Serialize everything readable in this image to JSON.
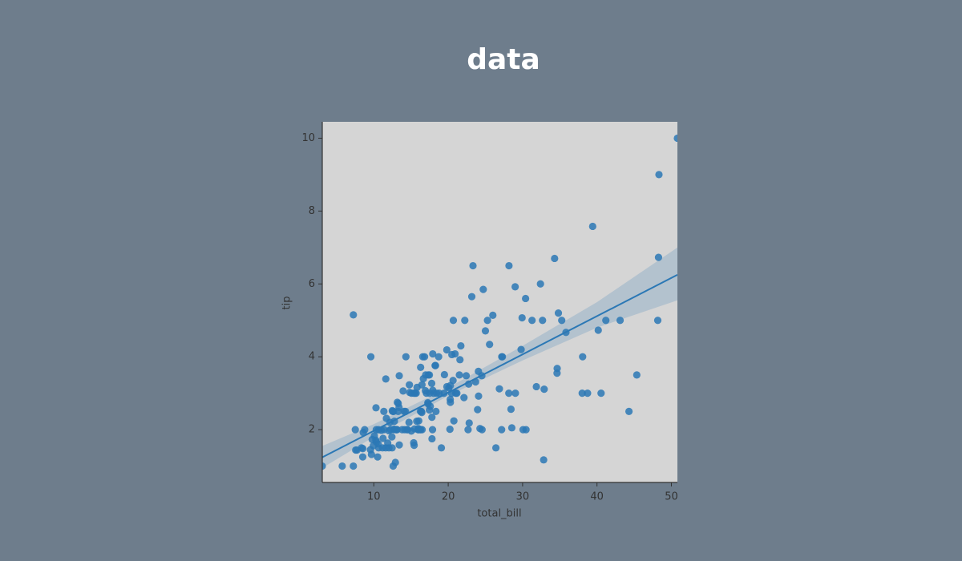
{
  "chart_data": {
    "type": "regplot",
    "title": "data",
    "x_label": "total_bill",
    "y_label": "tip",
    "xlim": [
      3.07,
      50.81
    ],
    "ylim": [
      0.55,
      10.45
    ],
    "xticks": [
      10,
      20,
      30,
      40,
      50
    ],
    "yticks": [
      2,
      4,
      6,
      8,
      10
    ],
    "color": "#2b78b5",
    "points": {
      "x": [
        50.81,
        48.33,
        39.42,
        48.27,
        34.3,
        23.33,
        28.17,
        24.71,
        23.17,
        26.0,
        29.0,
        32.4,
        30.4,
        48.17,
        40.55,
        38.01,
        38.73,
        38.07,
        41.19,
        43.11,
        40.17,
        45.35,
        44.3,
        35.26,
        34.63,
        34.65,
        34.81,
        35.83,
        32.9,
        32.83,
        32.68,
        31.85,
        31.27,
        30.46,
        29.8,
        29.93,
        28.55,
        28.44,
        28.15,
        29.03,
        27.2,
        27.28,
        26.88,
        27.18,
        26.41,
        30.06,
        25.0,
        25.28,
        25.56,
        22.82,
        22.67,
        24.08,
        24.27,
        24.55,
        24.06,
        24.52,
        23.95,
        22.42,
        21.58,
        22.75,
        20.69,
        22.23,
        21.5,
        21.01,
        20.92,
        20.65,
        20.29,
        20.27,
        21.16,
        20.45,
        20.23,
        19.81,
        20.76,
        20.49,
        20.08,
        20.29,
        22.12,
        21.7,
        19.08,
        18.78,
        19.44,
        19.82,
        19.49,
        18.71,
        18.29,
        18.24,
        17.92,
        18.35,
        18.04,
        17.78,
        18.43,
        17.81,
        17.92,
        17.89,
        17.82,
        17.07,
        17.26,
        17.29,
        17.31,
        17.46,
        17.47,
        17.51,
        16.97,
        16.93,
        16.82,
        16.66,
        16.58,
        16.49,
        16.47,
        16.4,
        16.31,
        16.29,
        16.27,
        16.21,
        16.0,
        16.04,
        15.98,
        15.95,
        15.81,
        15.77,
        15.69,
        15.53,
        15.48,
        15.42,
        15.38,
        15.36,
        15.06,
        15.04,
        14.83,
        14.78,
        14.73,
        14.52,
        14.48,
        14.31,
        14.26,
        14.15,
        14.07,
        13.94,
        13.81,
        13.42,
        13.42,
        13.39,
        13.28,
        13.27,
        13.16,
        13.13,
        13.03,
        13.0,
        12.9,
        12.76,
        12.74,
        12.69,
        12.66,
        12.6,
        12.54,
        12.48,
        12.46,
        12.43,
        12.26,
        12.16,
        12.03,
        12.02,
        11.87,
        11.69,
        11.61,
        11.59,
        11.38,
        11.35,
        11.24,
        11.17,
        11.02,
        10.65,
        10.63,
        10.59,
        10.51,
        10.34,
        10.33,
        10.29,
        10.27,
        10.07,
        9.94,
        9.78,
        9.68,
        9.6,
        9.55,
        8.77,
        8.58,
        8.52,
        8.51,
        8.35,
        7.74,
        7.56,
        7.51,
        7.25,
        7.25,
        5.75,
        3.07,
        16.45,
        17.59,
        23.68
      ],
      "y": [
        10,
        9,
        7.58,
        6.73,
        6.7,
        6.5,
        6.5,
        5.85,
        5.65,
        5.14,
        5.92,
        6.0,
        5.6,
        5.0,
        3.0,
        3.0,
        3.0,
        4.0,
        5.0,
        5.0,
        4.73,
        3.5,
        2.5,
        5.0,
        3.55,
        3.68,
        5.2,
        4.67,
        3.11,
        1.17,
        5.0,
        3.18,
        5.0,
        2.0,
        4.2,
        5.07,
        2.05,
        2.56,
        3.0,
        3.0,
        4.0,
        4.0,
        3.12,
        2.0,
        1.5,
        2.0,
        4.71,
        5.0,
        4.34,
        2.18,
        2.0,
        2.92,
        2.03,
        2.0,
        3.6,
        3.48,
        2.55,
        3.48,
        3.92,
        3.25,
        5.0,
        5.0,
        3.5,
        3.0,
        4.08,
        3.35,
        3.21,
        2.83,
        3.0,
        3.0,
        2.01,
        4.19,
        2.24,
        4.06,
        3.15,
        2.75,
        2.88,
        4.3,
        1.5,
        3.0,
        3.0,
        3.18,
        3.51,
        4.0,
        3.76,
        3.76,
        4.08,
        2.5,
        3.0,
        3.27,
        3.0,
        2.34,
        3.08,
        2.0,
        1.75,
        3.0,
        2.74,
        2.71,
        3.5,
        2.54,
        3.5,
        3.0,
        3.5,
        3.07,
        4.0,
        3.4,
        4.0,
        2.0,
        3.23,
        2.5,
        2.0,
        3.71,
        2.5,
        2.0,
        2.0,
        2.24,
        2.03,
        2.0,
        3.16,
        2.23,
        3.0,
        3.0,
        2.02,
        1.57,
        3.0,
        1.64,
        3.0,
        1.96,
        3.02,
        3.23,
        2.2,
        2.0,
        2.0,
        4.0,
        2.5,
        2.0,
        2.5,
        3.06,
        2.0,
        3.48,
        1.58,
        2.61,
        2.72,
        2.5,
        2.75,
        2.0,
        2.0,
        2.0,
        1.1,
        2.23,
        2.01,
        2.0,
        2.5,
        1.0,
        2.5,
        2.52,
        1.5,
        1.8,
        2.0,
        2.2,
        1.5,
        1.97,
        1.63,
        2.31,
        3.39,
        1.5,
        2.0,
        2.5,
        1.76,
        1.5,
        1.98,
        1.5,
        2.0,
        1.61,
        1.25,
        1.66,
        2.0,
        2.6,
        1.71,
        1.83,
        1.56,
        1.73,
        1.32,
        4.0,
        1.45,
        2.0,
        1.92,
        1.48,
        1.25,
        1.5,
        1.44,
        1.44,
        2.0,
        5.15,
        1.0,
        1.0,
        1.0,
        2.47,
        2.64,
        3.31
      ]
    },
    "regression": {
      "x": [
        3.07,
        50.81
      ],
      "y": [
        1.24,
        6.25
      ]
    },
    "ci_band": {
      "x": [
        3.07,
        10,
        20,
        30,
        40,
        50.81
      ],
      "lower": [
        0.95,
        1.8,
        2.93,
        3.9,
        4.8,
        5.55
      ],
      "upper": [
        1.55,
        2.15,
        3.15,
        4.3,
        5.5,
        7.0
      ]
    }
  }
}
